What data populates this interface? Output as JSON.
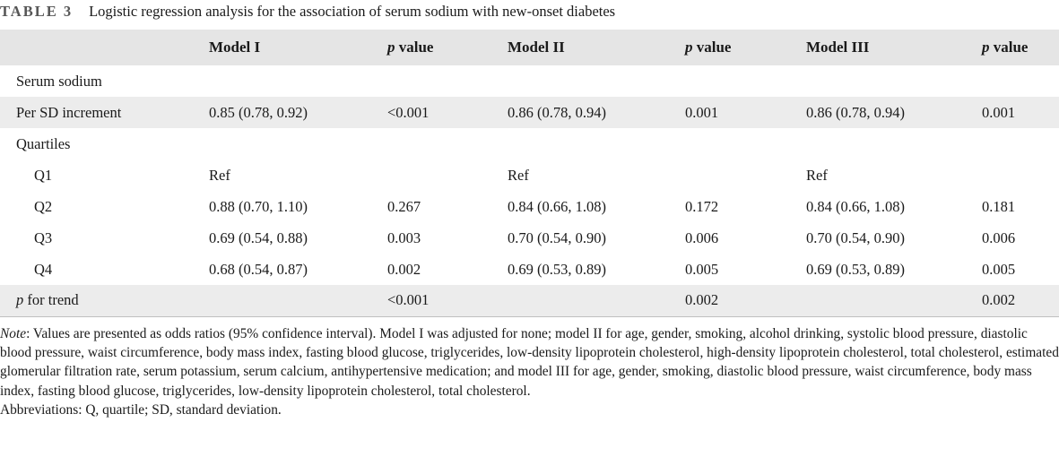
{
  "caption": {
    "label": "TABLE 3",
    "title": "Logistic regression analysis for the association of serum sodium with new-onset diabetes"
  },
  "table": {
    "headers": [
      "",
      "Model I",
      "value",
      "Model II",
      "value",
      "Model III",
      "value"
    ],
    "header_p": "p",
    "rows": [
      {
        "cells": [
          "Serum sodium",
          "",
          "",
          "",
          "",
          "",
          ""
        ],
        "shaded": false,
        "indent": false
      },
      {
        "cells": [
          "Per SD increment",
          "0.85 (0.78, 0.92)",
          "<0.001",
          "0.86 (0.78, 0.94)",
          "0.001",
          "0.86 (0.78, 0.94)",
          "0.001"
        ],
        "shaded": true,
        "indent": false
      },
      {
        "cells": [
          "Quartiles",
          "",
          "",
          "",
          "",
          "",
          ""
        ],
        "shaded": false,
        "indent": false
      },
      {
        "cells": [
          "Q1",
          "Ref",
          "",
          "Ref",
          "",
          "Ref",
          ""
        ],
        "shaded": false,
        "indent": true
      },
      {
        "cells": [
          "Q2",
          "0.88 (0.70, 1.10)",
          "0.267",
          "0.84 (0.66, 1.08)",
          "0.172",
          "0.84 (0.66, 1.08)",
          "0.181"
        ],
        "shaded": false,
        "indent": true
      },
      {
        "cells": [
          "Q3",
          "0.69 (0.54, 0.88)",
          "0.003",
          "0.70 (0.54, 0.90)",
          "0.006",
          "0.70 (0.54, 0.90)",
          "0.006"
        ],
        "shaded": false,
        "indent": true
      },
      {
        "cells": [
          "Q4",
          "0.68 (0.54, 0.87)",
          "0.002",
          "0.69 (0.53, 0.89)",
          "0.005",
          "0.69 (0.53, 0.89)",
          "0.005"
        ],
        "shaded": false,
        "indent": true
      },
      {
        "cells": [
          "for trend",
          "",
          "<0.001",
          "",
          "0.002",
          "",
          "0.002"
        ],
        "shaded": true,
        "indent": false,
        "first_prefix": "p"
      }
    ]
  },
  "note": {
    "label": "Note",
    "text": ": Values are presented as odds ratios (95% confidence interval). Model I was adjusted for none; model II for age, gender, smoking, alcohol drinking, systolic blood pressure, diastolic blood pressure, waist circumference, body mass index, fasting blood glucose, triglycerides, low-density lipoprotein cholesterol, high-density lipoprotein cholesterol, total cholesterol, estimated glomerular filtration rate, serum potassium, serum calcium, antihypertensive medication; and model III for age, gender, smoking, diastolic blood pressure, waist circumference, body mass index, fasting blood glucose, triglycerides, low-density lipoprotein cholesterol, total cholesterol.",
    "abbreviations": "Abbreviations: Q, quartile; SD, standard deviation."
  }
}
